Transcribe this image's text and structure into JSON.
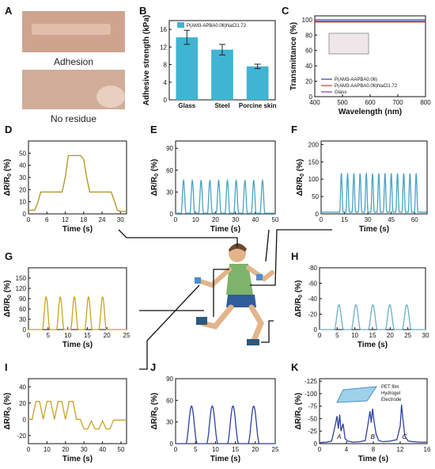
{
  "figure": {
    "panel_letters": [
      "A",
      "B",
      "C",
      "D",
      "E",
      "F",
      "G",
      "H",
      "I",
      "J",
      "K"
    ],
    "panel_a": {
      "caption_top": "Adhesion",
      "caption_bottom": "No residue"
    }
  },
  "chart_data": [
    {
      "id": "B",
      "type": "bar",
      "categories": [
        "Glass",
        "Steel",
        "Porcine skin"
      ],
      "values": [
        14.2,
        11.4,
        7.6
      ],
      "errors": [
        1.6,
        1.2,
        0.5
      ],
      "legend": [
        "P(AM3-APBA0.06)NaCl1.72"
      ],
      "ylabel": "Adhesive strength (kPa)",
      "ylim": [
        0,
        18
      ],
      "yticks": [
        0,
        4,
        8,
        12,
        16
      ],
      "color": "#3fb5d3"
    },
    {
      "id": "C",
      "type": "line",
      "xlabel": "Wavelength (nm)",
      "ylabel": "Transmittance (%)",
      "xlim": [
        400,
        800
      ],
      "ylim": [
        0,
        105
      ],
      "xticks": [
        400,
        500,
        600,
        700,
        800
      ],
      "yticks": [
        0,
        20,
        40,
        60,
        80,
        100
      ],
      "series": [
        {
          "name": "P(AM3-AAPBA0.06)",
          "color": "#2f3fa0",
          "x": [
            400,
            800
          ],
          "y": [
            98,
            98
          ]
        },
        {
          "name": "P(AM3-AAPBA0.06)NaCl1.72",
          "color": "#c0392b",
          "x": [
            400,
            800
          ],
          "y": [
            97,
            97
          ]
        },
        {
          "name": "Glass",
          "color": "#7b3fa0",
          "x": [
            400,
            800
          ],
          "y": [
            100,
            100
          ]
        }
      ]
    },
    {
      "id": "D",
      "type": "line",
      "color": "#b0921a",
      "xlabel": "Time (s)",
      "ylabel": "ΔR/R0 (%)",
      "xlim": [
        0,
        32
      ],
      "ylim": [
        0,
        60
      ],
      "xticks": [
        0,
        6,
        12,
        18,
        24,
        30
      ],
      "yticks": [
        0,
        10,
        20,
        30,
        40,
        50
      ],
      "x": [
        0,
        1,
        2,
        3,
        4,
        5,
        6,
        7,
        8,
        9,
        10,
        11,
        12,
        13,
        14,
        15,
        16,
        17,
        18,
        19,
        20,
        21,
        22,
        23,
        24,
        25,
        26,
        27,
        28,
        29,
        30,
        31,
        32
      ],
      "y": [
        3,
        3,
        3,
        9,
        18,
        18,
        18,
        18,
        18,
        18,
        18,
        18,
        30,
        48,
        48,
        48,
        48,
        48,
        45,
        30,
        18,
        18,
        18,
        18,
        18,
        18,
        18,
        18,
        11,
        3,
        2,
        2,
        2
      ]
    },
    {
      "id": "E",
      "type": "line",
      "color": "#4aa3c4",
      "xlabel": "Time (s)",
      "ylabel": "ΔR/R0 (%)",
      "xlim": [
        0,
        50
      ],
      "ylim": [
        0,
        100
      ],
      "xticks": [
        0,
        10,
        20,
        30,
        40,
        50
      ],
      "yticks": [
        0,
        30,
        60,
        90
      ],
      "peaks": {
        "count": 10,
        "start": 4,
        "period": 4.4,
        "baseline": 1,
        "height": 45
      }
    },
    {
      "id": "F",
      "type": "line",
      "color": "#4aa3c4",
      "xlabel": "Time (s)",
      "ylabel": "ΔR/R0 (%)",
      "xlim": [
        0,
        68
      ],
      "ylim": [
        0,
        210
      ],
      "xticks": [
        0,
        15,
        30,
        45,
        60
      ],
      "yticks": [
        0,
        50,
        100,
        150,
        200
      ],
      "peaks": {
        "count": 13,
        "start": 13,
        "period": 4.0,
        "baseline": 5,
        "height": 112
      }
    },
    {
      "id": "G",
      "type": "line",
      "color": "#c9a227",
      "xlabel": "Time (s)",
      "ylabel": "ΔR/R0 (%)",
      "xlim": [
        0,
        25
      ],
      "ylim": [
        0,
        180
      ],
      "xticks": [
        0,
        5,
        10,
        15,
        20,
        25
      ],
      "yticks": [
        0,
        30,
        60,
        90,
        120,
        150
      ],
      "peaks": {
        "count": 5,
        "start": 4.5,
        "period": 3.6,
        "baseline": 0,
        "height": 95
      }
    },
    {
      "id": "H",
      "type": "line",
      "color": "#6aaec9",
      "xlabel": "Time (s)",
      "ylabel": "ΔR/R0 (%)",
      "xlim": [
        0,
        30
      ],
      "ylim": [
        0,
        -80
      ],
      "xticks": [
        0,
        5,
        10,
        15,
        20,
        25,
        30
      ],
      "yticks": [
        0,
        -20,
        -40,
        -60,
        -80
      ],
      "peaks": {
        "count": 5,
        "start": 5.5,
        "period": 4.8,
        "baseline": 0,
        "height": -32
      }
    },
    {
      "id": "I",
      "type": "line",
      "color": "#c9a227",
      "xlabel": "Time (s)",
      "ylabel": "ΔR/R0 (%)",
      "xlim": [
        0,
        53
      ],
      "ylim": [
        -30,
        50
      ],
      "xticks": [
        0,
        10,
        20,
        30,
        40,
        50
      ],
      "yticks": [
        -20,
        0,
        20,
        40
      ],
      "x": [
        0,
        2,
        4,
        6,
        8,
        10,
        12,
        14,
        16,
        18,
        20,
        22,
        24,
        26,
        28,
        30,
        32,
        34,
        36,
        38,
        40,
        42,
        44,
        46,
        48,
        50,
        52,
        53
      ],
      "y": [
        0,
        0,
        22,
        22,
        0,
        22,
        22,
        0,
        22,
        22,
        0,
        22,
        22,
        0,
        0,
        -12,
        -12,
        -2,
        -12,
        -12,
        -2,
        -12,
        -12,
        -1,
        -1,
        -1,
        -1,
        -1
      ]
    },
    {
      "id": "J",
      "type": "line",
      "color": "#2f3fa0",
      "xlabel": "Time (s)",
      "ylabel": "ΔR/R0 (%)",
      "xlim": [
        0,
        25
      ],
      "ylim": [
        0,
        90
      ],
      "xticks": [
        0,
        5,
        10,
        15,
        20,
        25
      ],
      "yticks": [
        0,
        30,
        60,
        90
      ],
      "peaks": {
        "count": 4,
        "start": 4,
        "period": 5.2,
        "baseline": 0,
        "height": 52
      }
    },
    {
      "id": "K",
      "type": "line",
      "color": "#2f3fa0",
      "xlabel": "Time (s)",
      "ylabel": "ΔR/R0 (%)",
      "xlim": [
        0,
        16
      ],
      "ylim": [
        0,
        -130
      ],
      "xticks": [
        0,
        4,
        8,
        12,
        16
      ],
      "yticks": [
        0,
        -25,
        -50,
        -75,
        -100,
        -125
      ],
      "annotations": [
        "A",
        "B",
        "C"
      ],
      "inset_labels": [
        "PET film",
        "Hydrogel",
        "Electrode"
      ],
      "x": [
        0,
        1,
        1.8,
        2.3,
        2.6,
        2.8,
        3.0,
        3.2,
        3.5,
        3.8,
        4.2,
        5,
        6,
        6.8,
        7.2,
        7.5,
        7.7,
        7.9,
        8.1,
        8.4,
        8.8,
        9.5,
        10.5,
        11.5,
        12.0,
        12.2,
        12.4,
        12.7,
        13.2,
        14,
        15,
        16
      ],
      "y": [
        -2,
        -3,
        -5,
        -35,
        -55,
        -30,
        -58,
        -25,
        -40,
        -10,
        -5,
        -3,
        -4,
        -6,
        -38,
        -65,
        -42,
        -70,
        -45,
        -20,
        -6,
        -4,
        -5,
        -8,
        -35,
        -78,
        -50,
        -15,
        -5,
        -4,
        -3,
        -3
      ]
    }
  ]
}
